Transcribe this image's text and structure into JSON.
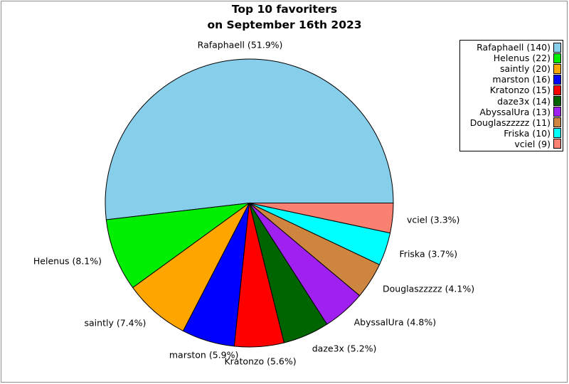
{
  "title": {
    "line1": "Top 10 favoriters",
    "line2": "on September 16th 2023"
  },
  "chart_data": {
    "type": "pie",
    "title": "Top 10 favoriters on September 16th 2023",
    "start_angle_deg": 0,
    "counterclockwise": true,
    "total": 270,
    "legend_position": "upper right",
    "slices": [
      {
        "name": "Rafaphaell",
        "count": 140,
        "pct": 51.9,
        "label": "Rafaphaell (51.9%)",
        "legend_label": "Rafaphaell (140)",
        "color": "#87CEEB"
      },
      {
        "name": "Helenus",
        "count": 22,
        "pct": 8.1,
        "label": "Helenus (8.1%)",
        "legend_label": "Helenus (22)",
        "color": "#00EE00"
      },
      {
        "name": "saintly",
        "count": 20,
        "pct": 7.4,
        "label": "saintly (7.4%)",
        "legend_label": "saintly (20)",
        "color": "#FFA500"
      },
      {
        "name": "marston",
        "count": 16,
        "pct": 5.9,
        "label": "marston (5.9%)",
        "legend_label": "marston (16)",
        "color": "#0000FF"
      },
      {
        "name": "Kratonzo",
        "count": 15,
        "pct": 5.6,
        "label": "Kratonzo (5.6%)",
        "legend_label": "Kratonzo (15)",
        "color": "#FF0000"
      },
      {
        "name": "daze3x",
        "count": 14,
        "pct": 5.2,
        "label": "daze3x (5.2%)",
        "legend_label": "daze3x (14)",
        "color": "#006400"
      },
      {
        "name": "AbyssalUra",
        "count": 13,
        "pct": 4.8,
        "label": "AbyssalUra (4.8%)",
        "legend_label": "AbyssalUra (13)",
        "color": "#A020F0"
      },
      {
        "name": "Douglaszzzzz",
        "count": 11,
        "pct": 4.1,
        "label": "Douglaszzzzz (4.1%)",
        "legend_label": "Douglaszzzzz (11)",
        "color": "#CD853F"
      },
      {
        "name": "Friska",
        "count": 10,
        "pct": 3.7,
        "label": "Friska (3.7%)",
        "legend_label": "Friska (10)",
        "color": "#00FFFF"
      },
      {
        "name": "vciel",
        "count": 9,
        "pct": 3.3,
        "label": "vciel (3.3%)",
        "legend_label": "vciel (9)",
        "color": "#FA8072"
      }
    ]
  }
}
